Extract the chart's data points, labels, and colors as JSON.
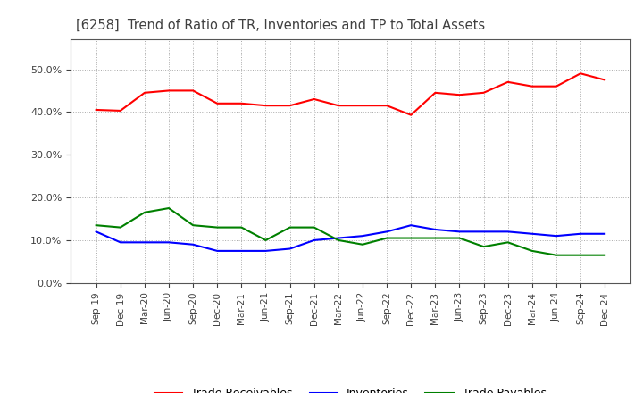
{
  "title": "[6258]  Trend of Ratio of TR, Inventories and TP to Total Assets",
  "x_labels": [
    "Sep-19",
    "Dec-19",
    "Mar-20",
    "Jun-20",
    "Sep-20",
    "Dec-20",
    "Mar-21",
    "Jun-21",
    "Sep-21",
    "Dec-21",
    "Mar-22",
    "Jun-22",
    "Sep-22",
    "Dec-22",
    "Mar-23",
    "Jun-23",
    "Sep-23",
    "Dec-23",
    "Mar-24",
    "Jun-24",
    "Sep-24",
    "Dec-24"
  ],
  "trade_receivables": [
    0.405,
    0.403,
    0.445,
    0.45,
    0.45,
    0.42,
    0.42,
    0.415,
    0.415,
    0.43,
    0.415,
    0.415,
    0.415,
    0.393,
    0.445,
    0.44,
    0.445,
    0.47,
    0.46,
    0.46,
    0.49,
    0.475
  ],
  "inventories": [
    0.12,
    0.095,
    0.095,
    0.095,
    0.09,
    0.075,
    0.075,
    0.075,
    0.08,
    0.1,
    0.105,
    0.11,
    0.12,
    0.135,
    0.125,
    0.12,
    0.12,
    0.12,
    0.115,
    0.11,
    0.115,
    0.115
  ],
  "trade_payables": [
    0.135,
    0.13,
    0.165,
    0.175,
    0.135,
    0.13,
    0.13,
    0.1,
    0.13,
    0.13,
    0.1,
    0.09,
    0.105,
    0.105,
    0.105,
    0.105,
    0.085,
    0.095,
    0.075,
    0.065,
    0.065,
    0.065
  ],
  "line_colors": {
    "trade_receivables": "#FF0000",
    "inventories": "#0000FF",
    "trade_payables": "#008000"
  },
  "title_color": "#404040",
  "ylim": [
    0.0,
    0.57
  ],
  "yticks": [
    0.0,
    0.1,
    0.2,
    0.3,
    0.4,
    0.5
  ],
  "background_color": "#FFFFFF",
  "grid_color": "#AAAAAA",
  "tick_color": "#404040"
}
